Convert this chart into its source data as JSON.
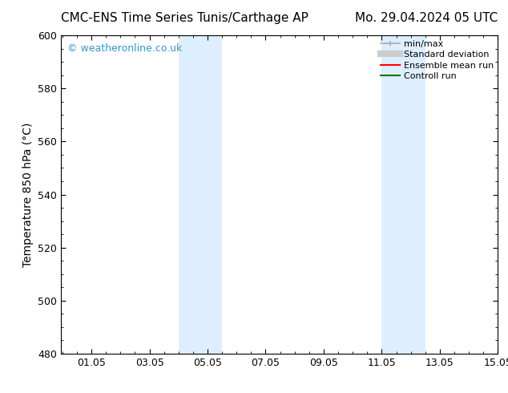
{
  "title_left": "CMC-ENS Time Series Tunis/Carthage AP",
  "title_right": "Mo. 29.04.2024 05 UTC",
  "ylabel": "Temperature 850 hPa (°C)",
  "xlim": [
    0.0,
    15.05
  ],
  "ylim": [
    480,
    600
  ],
  "yticks": [
    480,
    500,
    520,
    540,
    560,
    580,
    600
  ],
  "xticks": [
    1.05,
    3.05,
    5.05,
    7.05,
    9.05,
    11.05,
    13.05,
    15.05
  ],
  "xticklabels": [
    "01.05",
    "03.05",
    "05.05",
    "07.05",
    "09.05",
    "11.05",
    "13.05",
    "15.05"
  ],
  "background_color": "#ffffff",
  "plot_bg_color": "#ffffff",
  "shaded_regions": [
    {
      "xmin": 4.05,
      "xmax": 5.55,
      "color": "#ddeeff"
    },
    {
      "xmin": 11.05,
      "xmax": 12.55,
      "color": "#ddeeff"
    }
  ],
  "watermark_text": "© weatheronline.co.uk",
  "watermark_color": "#3399cc",
  "legend_items": [
    {
      "label": "min/max",
      "color": "#aaaaaa",
      "lw": 1.5
    },
    {
      "label": "Standard deviation",
      "color": "#cccccc",
      "lw": 6
    },
    {
      "label": "Ensemble mean run",
      "color": "#ff0000",
      "lw": 1.5
    },
    {
      "label": "Controll run",
      "color": "#007700",
      "lw": 1.5
    }
  ],
  "title_fontsize": 11,
  "tick_fontsize": 9,
  "ylabel_fontsize": 10,
  "watermark_fontsize": 9,
  "legend_fontsize": 8
}
